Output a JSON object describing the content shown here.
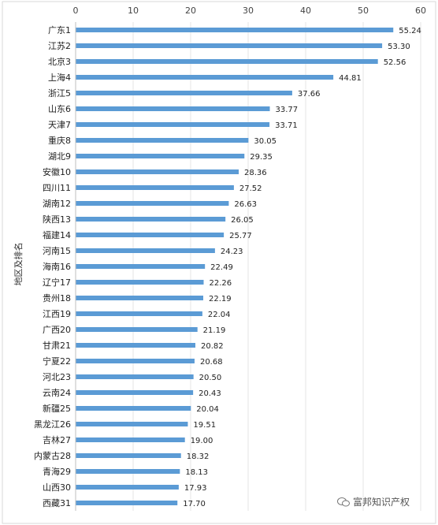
{
  "chart_data": {
    "type": "bar",
    "orientation": "horizontal",
    "title": "",
    "xlabel": "",
    "ylabel": "地区及排名",
    "xlim": [
      0,
      60
    ],
    "x_ticks": [
      0,
      10,
      20,
      30,
      40,
      50,
      60
    ],
    "x_axis_position": "top",
    "grid": true,
    "bar_color": "#5B9BD5",
    "categories": [
      "广东1",
      "江苏2",
      "北京3",
      "上海4",
      "浙江5",
      "山东6",
      "天津7",
      "重庆8",
      "湖北9",
      "安徽10",
      "四川11",
      "湖南12",
      "陕西13",
      "福建14",
      "河南15",
      "海南16",
      "辽宁17",
      "贵州18",
      "江西19",
      "广西20",
      "甘肃21",
      "宁夏22",
      "河北23",
      "云南24",
      "新疆25",
      "黑龙江26",
      "吉林27",
      "内蒙古28",
      "青海29",
      "山西30",
      "西藏31"
    ],
    "values": [
      55.24,
      53.3,
      52.56,
      44.81,
      37.66,
      33.77,
      33.71,
      30.05,
      29.35,
      28.36,
      27.52,
      26.63,
      26.05,
      25.77,
      24.23,
      22.49,
      22.26,
      22.19,
      22.04,
      21.19,
      20.82,
      20.68,
      20.5,
      20.43,
      20.04,
      19.51,
      19.0,
      18.32,
      18.13,
      17.93,
      17.7
    ],
    "value_labels": [
      "55.24",
      "53.30",
      "52.56",
      "44.81",
      "37.66",
      "33.77",
      "33.71",
      "30.05",
      "29.35",
      "28.36",
      "27.52",
      "26.63",
      "26.05",
      "25.77",
      "24.23",
      "22.49",
      "22.26",
      "22.19",
      "22.04",
      "21.19",
      "20.82",
      "20.68",
      "20.50",
      "20.43",
      "20.04",
      "19.51",
      "19.00",
      "18.32",
      "18.13",
      "17.93",
      "17.70"
    ]
  },
  "watermark": {
    "text": "富邦知识产权",
    "icon": "wechat-icon"
  }
}
